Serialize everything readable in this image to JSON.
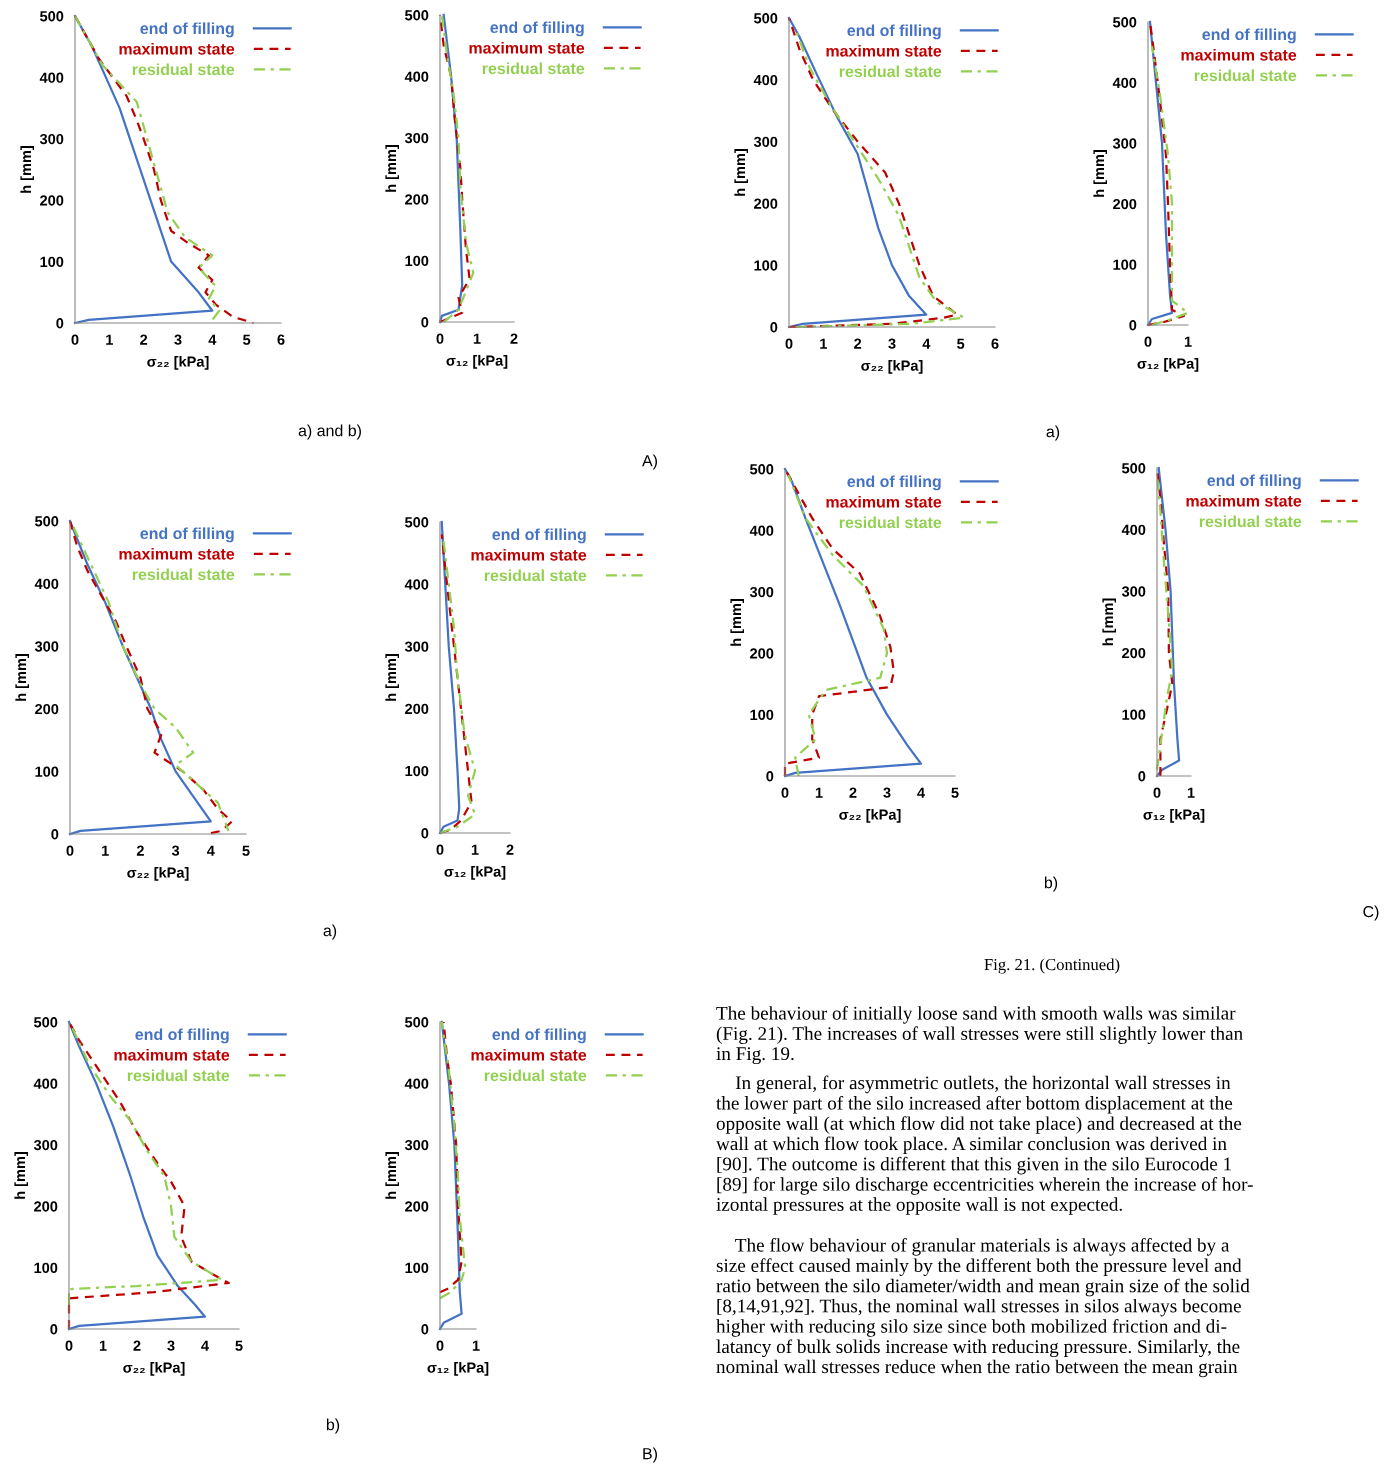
{
  "chart_data": [
    {
      "type": "line",
      "xlabel": "σ₂₂ [kPa]",
      "ylabel": "h [mm]",
      "xlim": [
        0,
        6
      ],
      "xticks": [
        0,
        1,
        2,
        3,
        4,
        5,
        6
      ],
      "ylim": [
        0,
        500
      ],
      "yticks": [
        0,
        100,
        200,
        300,
        400,
        500
      ],
      "legend": "top right",
      "series": [
        {
          "name": "end of filling",
          "color": "#4472c4",
          "line_style": "solid",
          "x": [
            0,
            0.4,
            4.0,
            3.6,
            2.8,
            2.5,
            2.2,
            1.9,
            1.6,
            1.3,
            0.9,
            0.5,
            0
          ],
          "values": [
            0,
            5,
            20,
            50,
            100,
            150,
            200,
            250,
            300,
            350,
            400,
            450,
            500
          ]
        },
        {
          "name": "maximum state",
          "color": "#c00000",
          "line_style": "dashed",
          "x": [
            0,
            0.3,
            0.7,
            1.1,
            1.5,
            1.8,
            2.0,
            2.3,
            2.5,
            2.8,
            3.3,
            3.9,
            3.6,
            4.0,
            3.8,
            4.1,
            4.6,
            5.2
          ],
          "values": [
            500,
            470,
            430,
            400,
            370,
            330,
            300,
            250,
            200,
            150,
            130,
            110,
            90,
            70,
            50,
            30,
            10,
            0
          ]
        },
        {
          "name": "residual state",
          "color": "#92d050",
          "line_style": "dashdot",
          "x": [
            0,
            0.4,
            0.8,
            1.3,
            1.8,
            2.1,
            2.4,
            2.7,
            3.2,
            4.0,
            3.6,
            4.1,
            3.9,
            4.2,
            4.0
          ],
          "values": [
            500,
            460,
            420,
            390,
            360,
            300,
            240,
            180,
            140,
            110,
            90,
            60,
            40,
            20,
            5
          ]
        }
      ]
    },
    {
      "type": "line",
      "xlabel": "σ₁₂ [kPa]",
      "ylabel": "h [mm]",
      "xlim": [
        0,
        2
      ],
      "xticks": [
        0,
        1,
        2
      ],
      "ylim": [
        0,
        500
      ],
      "yticks": [
        0,
        100,
        200,
        300,
        400,
        500
      ],
      "legend": "top right",
      "annotations": [
        "a) and b)",
        "A)"
      ],
      "series": [
        {
          "name": "end of filling",
          "color": "#4472c4",
          "line_style": "solid",
          "x": [
            0,
            0.05,
            0.5,
            0.6,
            0.55,
            0.45,
            0.3,
            0.1
          ],
          "values": [
            0,
            10,
            20,
            60,
            150,
            300,
            400,
            500
          ]
        },
        {
          "name": "maximum state",
          "color": "#c00000",
          "line_style": "dashed",
          "x": [
            0,
            0.2,
            0.6,
            0.5,
            0.8,
            0.7,
            0.6,
            0.55,
            0.4,
            0.3,
            0.1,
            0
          ],
          "values": [
            0,
            5,
            15,
            40,
            70,
            120,
            200,
            250,
            330,
            400,
            450,
            500
          ]
        },
        {
          "name": "residual state",
          "color": "#92d050",
          "line_style": "dashdot",
          "x": [
            0.1,
            0.5,
            0.7,
            0.9,
            0.7,
            0.55,
            0.5,
            0.35,
            0.2,
            0.05
          ],
          "values": [
            0,
            20,
            50,
            80,
            130,
            220,
            300,
            380,
            430,
            500
          ]
        }
      ]
    },
    {
      "type": "line",
      "xlabel": "σ₂₂ [kPa]",
      "ylabel": "h [mm]",
      "xlim": [
        0,
        5
      ],
      "xticks": [
        0,
        1,
        2,
        3,
        4,
        5
      ],
      "ylim": [
        0,
        500
      ],
      "yticks": [
        0,
        100,
        200,
        300,
        400,
        500
      ],
      "legend": "top right",
      "series": [
        {
          "name": "end of filling",
          "color": "#4472c4",
          "line_style": "solid",
          "x": [
            0,
            0.3,
            4.0,
            3.5,
            3.0,
            2.6,
            2.3,
            1.9,
            1.5,
            1.0,
            0.5,
            0
          ],
          "values": [
            0,
            5,
            20,
            60,
            100,
            150,
            200,
            250,
            300,
            370,
            430,
            500
          ]
        },
        {
          "name": "maximum state",
          "color": "#c00000",
          "line_style": "dashed",
          "x": [
            0,
            0.2,
            0.5,
            0.9,
            1.3,
            1.6,
            2.0,
            2.2,
            2.6,
            2.4,
            3.2,
            3.8,
            4.2,
            4.6,
            4.3,
            3.9
          ],
          "values": [
            500,
            460,
            420,
            380,
            340,
            300,
            250,
            200,
            160,
            130,
            100,
            70,
            40,
            20,
            5,
            0
          ]
        },
        {
          "name": "residual state",
          "color": "#92d050",
          "line_style": "dashdot",
          "x": [
            0.1,
            0.6,
            1.1,
            1.5,
            2.0,
            2.4,
            3.0,
            3.5,
            3.0,
            3.6,
            4.2,
            4.4,
            4.5
          ],
          "values": [
            490,
            430,
            370,
            300,
            240,
            200,
            170,
            130,
            110,
            80,
            50,
            20,
            5
          ]
        }
      ]
    },
    {
      "type": "line",
      "xlabel": "σ₁₂ [kPa]",
      "ylabel": "h [mm]",
      "xlim": [
        0,
        2
      ],
      "xticks": [
        0,
        1,
        2
      ],
      "ylim": [
        0,
        500
      ],
      "yticks": [
        0,
        100,
        200,
        300,
        400,
        500
      ],
      "legend": "top right",
      "annotations": [
        "a)"
      ],
      "series": [
        {
          "name": "end of filling",
          "color": "#4472c4",
          "line_style": "solid",
          "x": [
            0,
            0.1,
            0.5,
            0.55,
            0.5,
            0.4,
            0.25,
            0.15,
            0.05
          ],
          "values": [
            0,
            10,
            20,
            40,
            100,
            200,
            300,
            400,
            500
          ]
        },
        {
          "name": "maximum state",
          "color": "#c00000",
          "line_style": "dashed",
          "x": [
            0,
            0.3,
            0.6,
            0.9,
            0.8,
            0.6,
            0.4,
            0.2,
            0.05
          ],
          "values": [
            0,
            5,
            20,
            50,
            100,
            200,
            300,
            400,
            480
          ]
        },
        {
          "name": "residual state",
          "color": "#92d050",
          "line_style": "dashdot",
          "x": [
            0,
            0.5,
            1.0,
            0.8,
            1.0,
            0.7,
            0.5,
            0.4,
            0.25,
            0.1
          ],
          "values": [
            0,
            10,
            30,
            60,
            100,
            160,
            250,
            330,
            400,
            470
          ]
        }
      ]
    },
    {
      "type": "line",
      "xlabel": "σ₂₂ [kPa]",
      "ylabel": "h [mm]",
      "xlim": [
        0,
        5
      ],
      "xticks": [
        0,
        1,
        2,
        3,
        4,
        5
      ],
      "ylim": [
        0,
        500
      ],
      "yticks": [
        0,
        100,
        200,
        300,
        400,
        500
      ],
      "legend": "top right",
      "series": [
        {
          "name": "end of filling",
          "color": "#4472c4",
          "line_style": "solid",
          "x": [
            0,
            0.3,
            4.0,
            3.7,
            3.2,
            2.6,
            2.2,
            1.8,
            1.3,
            0.8,
            0.3,
            0
          ],
          "values": [
            0,
            5,
            20,
            40,
            70,
            120,
            180,
            250,
            330,
            400,
            460,
            500
          ]
        },
        {
          "name": "maximum state",
          "color": "#c00000",
          "line_style": "dashed",
          "x": [
            0,
            0,
            2.5,
            4.7,
            4.2,
            3.6,
            3.3,
            3.4,
            3.0,
            2.6,
            2.0,
            1.5,
            0.9,
            0.3,
            0
          ],
          "values": [
            0,
            50,
            60,
            75,
            90,
            110,
            150,
            200,
            240,
            270,
            320,
            370,
            420,
            470,
            500
          ]
        },
        {
          "name": "residual state",
          "color": "#92d050",
          "line_style": "dashdot",
          "x": [
            0,
            0,
            2.0,
            4.5,
            3.6,
            3.1,
            3.0,
            2.8,
            2.3,
            1.8,
            1.2,
            0.6,
            0.1
          ],
          "values": [
            40,
            65,
            70,
            80,
            110,
            150,
            200,
            250,
            290,
            340,
            380,
            430,
            490
          ]
        }
      ]
    },
    {
      "type": "line",
      "xlabel": "σ₁₂ [kPa]",
      "ylabel": "h [mm]",
      "xlim": [
        0,
        1
      ],
      "xticks": [
        0,
        1
      ],
      "ylim": [
        0,
        500
      ],
      "yticks": [
        0,
        100,
        200,
        300,
        400,
        500
      ],
      "legend": "top right",
      "annotations": [
        "b)",
        "B)"
      ],
      "series": [
        {
          "name": "end of filling",
          "color": "#4472c4",
          "line_style": "solid",
          "x": [
            0,
            0.1,
            0.6,
            0.55,
            0.5,
            0.4,
            0.25,
            0.05
          ],
          "values": [
            0,
            10,
            25,
            60,
            150,
            300,
            400,
            500
          ]
        },
        {
          "name": "maximum state",
          "color": "#c00000",
          "line_style": "dashed",
          "x": [
            0,
            0.2,
            0.5,
            0.6,
            0.5,
            0.45,
            0.3,
            0.2,
            0.1
          ],
          "values": [
            60,
            65,
            80,
            110,
            200,
            300,
            400,
            440,
            500
          ]
        },
        {
          "name": "residual state",
          "color": "#92d050",
          "line_style": "dashdot",
          "x": [
            0,
            0.3,
            0.6,
            0.7,
            0.55,
            0.5,
            0.4,
            0.25,
            0.05
          ],
          "values": [
            50,
            60,
            80,
            100,
            180,
            250,
            330,
            420,
            500
          ]
        }
      ]
    },
    {
      "type": "line",
      "xlabel": "σ₂₂ [kPa]",
      "ylabel": "h [mm]",
      "xlim": [
        0,
        6
      ],
      "xticks": [
        0,
        1,
        2,
        3,
        4,
        5,
        6
      ],
      "ylim": [
        0,
        500
      ],
      "yticks": [
        0,
        100,
        200,
        300,
        400,
        500
      ],
      "legend": "top right",
      "series": [
        {
          "name": "end of filling",
          "color": "#4472c4",
          "line_style": "solid",
          "x": [
            0,
            0.4,
            4.0,
            3.5,
            3.0,
            2.6,
            2.3,
            2.0,
            1.4,
            0.8,
            0.3,
            0
          ],
          "values": [
            0,
            5,
            20,
            50,
            100,
            160,
            220,
            280,
            340,
            410,
            470,
            500
          ]
        },
        {
          "name": "maximum state",
          "color": "#c00000",
          "line_style": "dashed",
          "x": [
            0,
            3.0,
            4.5,
            4.9,
            4.2,
            3.8,
            3.5,
            3.2,
            2.8,
            2.0,
            1.3,
            0.7,
            0.3,
            0
          ],
          "values": [
            0,
            5,
            15,
            20,
            50,
            100,
            150,
            200,
            250,
            300,
            350,
            400,
            450,
            500
          ]
        },
        {
          "name": "residual state",
          "color": "#92d050",
          "line_style": "dashdot",
          "x": [
            0.2,
            3.5,
            5.1,
            4.3,
            3.8,
            3.5,
            3.2,
            2.6,
            1.9,
            1.2,
            0.6,
            0.2
          ],
          "values": [
            0,
            5,
            15,
            40,
            80,
            130,
            180,
            240,
            300,
            360,
            420,
            480
          ]
        }
      ]
    },
    {
      "type": "line",
      "xlabel": "σ₁₂ [kPa]",
      "ylabel": "h [mm]",
      "xlim": [
        0,
        1
      ],
      "xticks": [
        0,
        1
      ],
      "ylim": [
        0,
        500
      ],
      "yticks": [
        0,
        100,
        200,
        300,
        400,
        500
      ],
      "legend": "top right",
      "annotations": [
        "a)"
      ],
      "series": [
        {
          "name": "end of filling",
          "color": "#4472c4",
          "line_style": "solid",
          "x": [
            0,
            0.1,
            0.6,
            0.55,
            0.45,
            0.35,
            0.2,
            0.05
          ],
          "values": [
            0,
            10,
            20,
            50,
            150,
            300,
            400,
            500
          ]
        },
        {
          "name": "maximum state",
          "color": "#c00000",
          "line_style": "dashed",
          "x": [
            0,
            0.4,
            0.9,
            0.6,
            0.55,
            0.5,
            0.45,
            0.3,
            0.15,
            0.05
          ],
          "values": [
            0,
            5,
            15,
            25,
            100,
            200,
            280,
            370,
            450,
            500
          ]
        },
        {
          "name": "residual state",
          "color": "#92d050",
          "line_style": "dashdot",
          "x": [
            0.1,
            0.6,
            1.0,
            0.6,
            0.6,
            0.6,
            0.5,
            0.3,
            0.1
          ],
          "values": [
            0,
            10,
            20,
            40,
            120,
            200,
            280,
            380,
            460
          ]
        }
      ]
    },
    {
      "type": "line",
      "xlabel": "σ₂₂ [kPa]",
      "ylabel": "h [mm]",
      "xlim": [
        0,
        5
      ],
      "xticks": [
        0,
        1,
        2,
        3,
        4,
        5
      ],
      "ylim": [
        0,
        500
      ],
      "yticks": [
        0,
        100,
        200,
        300,
        400,
        500
      ],
      "legend": "top right",
      "series": [
        {
          "name": "end of filling",
          "color": "#4472c4",
          "line_style": "solid",
          "x": [
            0,
            0.3,
            4.0,
            3.6,
            3.0,
            2.4,
            2.0,
            1.6,
            1.1,
            0.6,
            0.2,
            0
          ],
          "values": [
            0,
            5,
            20,
            50,
            100,
            160,
            220,
            280,
            350,
            420,
            480,
            500
          ]
        },
        {
          "name": "maximum state",
          "color": "#c00000",
          "line_style": "dashed",
          "x": [
            0,
            0,
            1.0,
            0.8,
            0.8,
            1.0,
            3.1,
            3.2,
            3.1,
            2.8,
            2.2,
            1.4,
            0.8,
            0.3,
            0
          ],
          "values": [
            0,
            20,
            30,
            60,
            100,
            130,
            145,
            170,
            210,
            260,
            330,
            370,
            420,
            470,
            500
          ]
        },
        {
          "name": "residual state",
          "color": "#92d050",
          "line_style": "dashdot",
          "x": [
            0.4,
            0.3,
            0.9,
            0.7,
            1.2,
            2.8,
            3.0,
            2.9,
            2.3,
            1.4,
            0.6,
            0.1
          ],
          "values": [
            0,
            30,
            60,
            100,
            140,
            160,
            200,
            240,
            310,
            360,
            420,
            490
          ]
        }
      ]
    },
    {
      "type": "line",
      "xlabel": "σ₁₂ [kPa]",
      "ylabel": "h [mm]",
      "xlim": [
        0,
        1
      ],
      "xticks": [
        0,
        1
      ],
      "ylim": [
        0,
        500
      ],
      "yticks": [
        0,
        100,
        200,
        300,
        400,
        500
      ],
      "legend": "top right",
      "annotations": [
        "b)",
        "C)"
      ],
      "series": [
        {
          "name": "end of filling",
          "color": "#4472c4",
          "line_style": "solid",
          "x": [
            0,
            0.15,
            0.65,
            0.6,
            0.5,
            0.4,
            0.25,
            0.05
          ],
          "values": [
            0,
            10,
            25,
            60,
            150,
            300,
            400,
            500
          ]
        },
        {
          "name": "maximum state",
          "color": "#c00000",
          "line_style": "dashed",
          "x": [
            0.1,
            0.1,
            0.3,
            0.45,
            0.35,
            0.33,
            0.2,
            0.1,
            0
          ],
          "values": [
            0,
            60,
            110,
            150,
            200,
            300,
            380,
            450,
            500
          ]
        },
        {
          "name": "residual state",
          "color": "#92d050",
          "line_style": "dashdot",
          "x": [
            0,
            0.1,
            0.3,
            0.45,
            0.35,
            0.2,
            0.1,
            0
          ],
          "values": [
            10,
            50,
            130,
            170,
            250,
            350,
            430,
            490
          ]
        }
      ]
    },
    {
      "type": "other",
      "annotations": [
        "Fig. 21. (Continued)",
        "The behaviour of initially loose sand with smooth walls was similar\n(Fig. 21). The increases of wall stresses were still slightly lower than\nin Fig. 19.",
        "    In general, for asymmetric outlets, the horizontal wall stresses in\nthe lower part of the silo increased after bottom displacement at the\nopposite wall (at which flow did not take place) and decreased at the\nwall at which flow took place. A similar conclusion was derived in\n[90]. The outcome is different that this given in the silo Eurocode 1\n[89] for large silo discharge eccentricities wherein the increase of hor-\nizontal pressures at the opposite wall is not expected.",
        "    The flow behaviour of granular materials is always affected by a\nsize effect caused mainly by the different both the pressure level and\nratio between the silo diameter/width and mean grain size of the solid\n[8,14,91,92]. Thus, the nominal wall stresses in silos always become\nhigher with reducing silo size since both mobilized friction and di-\nlatancy of bulk solids increase with reducing pressure. Similarly, the\nnominal wall stresses reduce when the ratio between the mean grain"
      ]
    }
  ]
}
